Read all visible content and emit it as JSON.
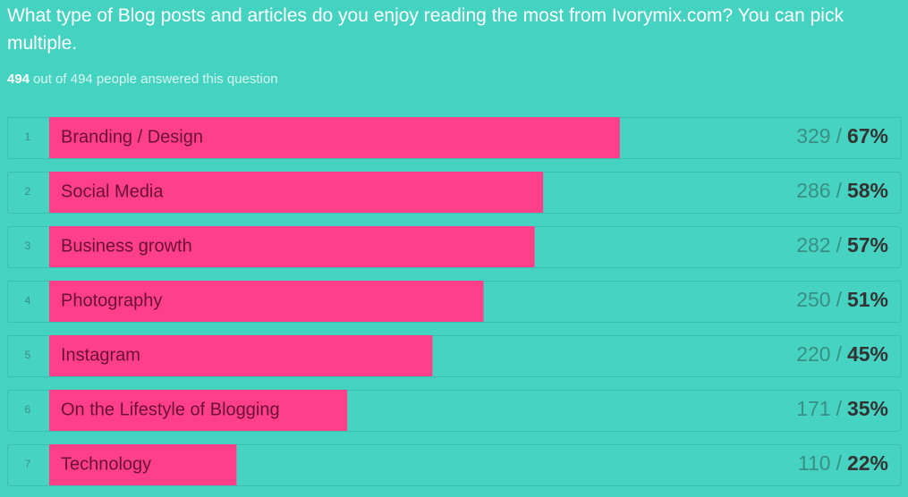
{
  "chart_data": {
    "type": "bar",
    "orientation": "horizontal",
    "title": "What type of Blog posts and articles do you enjoy reading the most from Ivorymix.com? You can pick multiple.",
    "answered": 494,
    "subtitle": "out of 494 people answered this question",
    "ranks": [
      "1",
      "2",
      "3",
      "4",
      "5",
      "6",
      "7"
    ],
    "categories": [
      "Branding / Design",
      "Social Media",
      "Business growth",
      "Photography",
      "Instagram",
      "On the Lifestyle of Blogging",
      "Technology"
    ],
    "counts": [
      329,
      286,
      282,
      250,
      220,
      171,
      110
    ],
    "count_separator": "/",
    "values": [
      67,
      58,
      57,
      51,
      45,
      35,
      22
    ],
    "value_labels": [
      "67%",
      "58%",
      "57%",
      "51%",
      "45%",
      "35%",
      "22%"
    ],
    "xlim": [
      0,
      100
    ],
    "color": "#ff3f8a"
  }
}
